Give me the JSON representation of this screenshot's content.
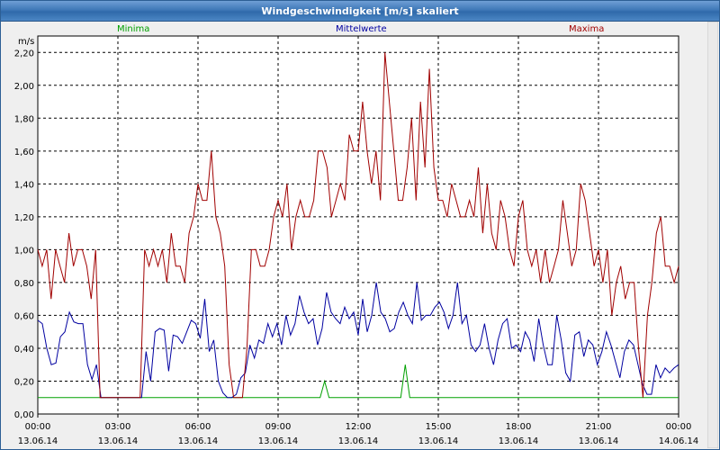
{
  "window": {
    "title": "Windgeschwindigkeit [m/s] skaliert"
  },
  "legend": {
    "min_label": "Minima",
    "mean_label": "Mittelwerte",
    "max_label": "Maxima"
  },
  "colors": {
    "min": "#00a000",
    "mean": "#0000a0",
    "max": "#a00000",
    "grid": "#000000",
    "plot_bg": "#ffffff"
  },
  "chart_data": {
    "type": "line",
    "title": "Windgeschwindigkeit [m/s] skaliert",
    "ylabel": "m/s",
    "ylim": [
      0,
      2.3
    ],
    "yticks": [
      0,
      0.2,
      0.4,
      0.6,
      0.8,
      1.0,
      1.2,
      1.4,
      1.6,
      1.8,
      2.0,
      2.2
    ],
    "ytick_labels": [
      "0,00",
      "0,20",
      "0,40",
      "0,60",
      "0,80",
      "1,00",
      "1,20",
      "1,40",
      "1,60",
      "1,80",
      "2,00",
      "2,20"
    ],
    "xlim": [
      "13.06.14 00:00",
      "14.06.14 00:00"
    ],
    "xticks": [
      {
        "time": "00:00",
        "date": "13.06.14"
      },
      {
        "time": "03:00",
        "date": "13.06.14"
      },
      {
        "time": "06:00",
        "date": "13.06.14"
      },
      {
        "time": "09:00",
        "date": "13.06.14"
      },
      {
        "time": "12:00",
        "date": "13.06.14"
      },
      {
        "time": "15:00",
        "date": "13.06.14"
      },
      {
        "time": "18:00",
        "date": "13.06.14"
      },
      {
        "time": "21:00",
        "date": "13.06.14"
      },
      {
        "time": "00:00",
        "date": "14.06.14"
      }
    ],
    "grid": true,
    "legend_position": "top",
    "interval_minutes": 10,
    "series": [
      {
        "name": "Minima",
        "color": "#00a000",
        "values": [
          0.1,
          0.1,
          0.1,
          0.1,
          0.1,
          0.1,
          0.1,
          0.1,
          0.1,
          0.1,
          0.1,
          0.1,
          0.1,
          0.1,
          0.1,
          0.1,
          0.1,
          0.1,
          0.1,
          0.1,
          0.1,
          0.1,
          0.1,
          0.1,
          0.1,
          0.1,
          0.1,
          0.1,
          0.1,
          0.1,
          0.1,
          0.1,
          0.1,
          0.1,
          0.1,
          0.1,
          0.1,
          0.1,
          0.1,
          0.1,
          0.1,
          0.1,
          0.1,
          0.1,
          0.1,
          0.1,
          0.1,
          0.1,
          0.1,
          0.1,
          0.1,
          0.1,
          0.1,
          0.1,
          0.1,
          0.1,
          0.1,
          0.1,
          0.1,
          0.1,
          0.1,
          0.1,
          0.1,
          0.1,
          0.2,
          0.1,
          0.1,
          0.1,
          0.1,
          0.1,
          0.1,
          0.1,
          0.1,
          0.1,
          0.1,
          0.1,
          0.1,
          0.1,
          0.1,
          0.1,
          0.1,
          0.1,
          0.3,
          0.1,
          0.1,
          0.1,
          0.1,
          0.1,
          0.1,
          0.1,
          0.1,
          0.1,
          0.1,
          0.1,
          0.1,
          0.1,
          0.1,
          0.1,
          0.1,
          0.1,
          0.1,
          0.1,
          0.1,
          0.1,
          0.1,
          0.1,
          0.1,
          0.1,
          0.1,
          0.1,
          0.1,
          0.1,
          0.1,
          0.1,
          0.1,
          0.1,
          0.1,
          0.1,
          0.1,
          0.1,
          0.1,
          0.1,
          0.1,
          0.1,
          0.1,
          0.1,
          0.1,
          0.1,
          0.1,
          0.1,
          0.1,
          0.1,
          0.1,
          0.1,
          0.1,
          0.1,
          0.1,
          0.1,
          0.1,
          0.1,
          0.1,
          0.1,
          0.1,
          0.1
        ]
      },
      {
        "name": "Mittelwerte",
        "color": "#0000a0",
        "values": [
          0.57,
          0.55,
          0.4,
          0.3,
          0.31,
          0.47,
          0.5,
          0.62,
          0.56,
          0.55,
          0.55,
          0.3,
          0.21,
          0.3,
          0.1,
          0.1,
          0.1,
          0.1,
          0.1,
          0.1,
          0.1,
          0.1,
          0.1,
          0.1,
          0.38,
          0.2,
          0.5,
          0.52,
          0.51,
          0.26,
          0.48,
          0.47,
          0.43,
          0.5,
          0.57,
          0.55,
          0.46,
          0.7,
          0.38,
          0.45,
          0.2,
          0.13,
          0.1,
          0.1,
          0.12,
          0.22,
          0.25,
          0.42,
          0.34,
          0.45,
          0.43,
          0.55,
          0.47,
          0.55,
          0.42,
          0.6,
          0.48,
          0.55,
          0.72,
          0.62,
          0.55,
          0.58,
          0.42,
          0.52,
          0.74,
          0.62,
          0.58,
          0.55,
          0.65,
          0.58,
          0.62,
          0.48,
          0.7,
          0.5,
          0.6,
          0.8,
          0.62,
          0.58,
          0.5,
          0.52,
          0.62,
          0.68,
          0.6,
          0.55,
          0.8,
          0.57,
          0.6,
          0.6,
          0.65,
          0.68,
          0.62,
          0.52,
          0.6,
          0.8,
          0.55,
          0.6,
          0.42,
          0.38,
          0.42,
          0.55,
          0.4,
          0.3,
          0.45,
          0.55,
          0.58,
          0.4,
          0.42,
          0.38,
          0.5,
          0.45,
          0.32,
          0.58,
          0.42,
          0.3,
          0.3,
          0.6,
          0.45,
          0.25,
          0.2,
          0.48,
          0.5,
          0.35,
          0.45,
          0.42,
          0.3,
          0.38,
          0.5,
          0.42,
          0.32,
          0.22,
          0.38,
          0.45,
          0.42,
          0.3,
          0.18,
          0.12,
          0.12,
          0.3,
          0.22,
          0.28,
          0.25,
          0.28,
          0.3
        ]
      },
      {
        "name": "Maxima",
        "color": "#a00000",
        "values": [
          1.0,
          0.9,
          1.0,
          0.7,
          1.0,
          0.9,
          0.8,
          1.1,
          0.9,
          1.0,
          1.0,
          0.9,
          0.7,
          1.0,
          0.1,
          0.1,
          0.1,
          0.1,
          0.1,
          0.1,
          0.1,
          0.1,
          0.1,
          0.1,
          1.0,
          0.9,
          1.0,
          0.9,
          1.0,
          0.8,
          1.1,
          0.9,
          0.9,
          0.8,
          1.1,
          1.2,
          1.4,
          1.3,
          1.3,
          1.6,
          1.2,
          1.1,
          0.9,
          0.3,
          0.1,
          0.1,
          0.1,
          0.4,
          1.0,
          1.0,
          0.9,
          0.9,
          1.0,
          1.2,
          1.3,
          1.2,
          1.4,
          1.0,
          1.2,
          1.3,
          1.2,
          1.2,
          1.3,
          1.6,
          1.6,
          1.5,
          1.2,
          1.3,
          1.4,
          1.3,
          1.7,
          1.6,
          1.6,
          1.9,
          1.6,
          1.4,
          1.6,
          1.3,
          2.2,
          1.9,
          1.6,
          1.3,
          1.3,
          1.5,
          1.8,
          1.3,
          1.9,
          1.5,
          2.1,
          1.5,
          1.3,
          1.3,
          1.2,
          1.4,
          1.3,
          1.2,
          1.2,
          1.3,
          1.2,
          1.5,
          1.1,
          1.4,
          1.1,
          1.0,
          1.3,
          1.2,
          1.0,
          0.9,
          1.2,
          1.3,
          1.0,
          0.9,
          1.0,
          0.8,
          1.0,
          0.8,
          0.9,
          1.0,
          1.3,
          1.1,
          0.9,
          1.0,
          1.4,
          1.3,
          1.1,
          0.9,
          1.0,
          0.8,
          1.0,
          0.6,
          0.8,
          0.9,
          0.7,
          0.8,
          0.8,
          0.4,
          0.1,
          0.6,
          0.8,
          1.1,
          1.2,
          0.9,
          0.9,
          0.8,
          0.9
        ]
      }
    ]
  }
}
